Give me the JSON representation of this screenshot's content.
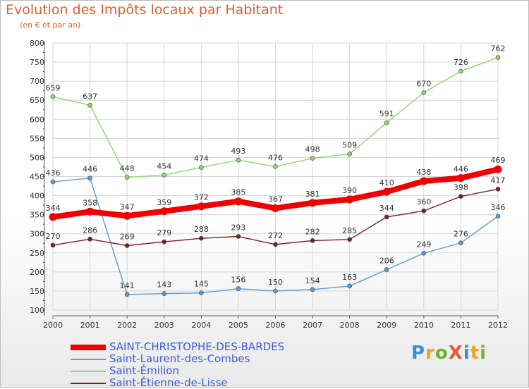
{
  "title": "Evolution des Impôts locaux par Habitant",
  "subtitle": "(en € et par an)",
  "brand": {
    "text": "Proxiti",
    "letters": [
      {
        "ch": "P",
        "color": "#3a8fd6"
      },
      {
        "ch": "r",
        "color": "#f2a21c"
      },
      {
        "ch": "o",
        "color": "#6cb52d"
      },
      {
        "ch": "X",
        "color": "#e35a3d"
      },
      {
        "ch": "i",
        "color": "#3a8fd6"
      },
      {
        "ch": "t",
        "color": "#f2a21c"
      },
      {
        "ch": "i",
        "color": "#6cb52d"
      }
    ]
  },
  "chart_data": {
    "type": "line",
    "title": "Evolution des Impôts locaux par Habitant",
    "subtitle": "(en € et par an)",
    "xlabel": "",
    "ylabel": "",
    "categories": [
      "2000",
      "2001",
      "2002",
      "2003",
      "2004",
      "2005",
      "2006",
      "2007",
      "2008",
      "2009",
      "2010",
      "2011",
      "2012"
    ],
    "ylim": [
      100,
      800
    ],
    "yticks": [
      100,
      150,
      200,
      250,
      300,
      350,
      400,
      450,
      500,
      550,
      600,
      650,
      700,
      750,
      800
    ],
    "grid": true,
    "legend_position": "bottom-left",
    "series": [
      {
        "name": "SAINT-CHRISTOPHE-DES-BARDES",
        "color": "#f00000",
        "emphasis": true,
        "values": [
          344,
          358,
          347,
          359,
          372,
          385,
          367,
          381,
          390,
          410,
          438,
          446,
          469
        ]
      },
      {
        "name": "Saint-Laurent-des-Combes",
        "color": "#5b9bd5",
        "values": [
          436,
          446,
          141,
          143,
          145,
          156,
          150,
          154,
          163,
          206,
          249,
          276,
          346
        ]
      },
      {
        "name": "Saint-Émilion",
        "color": "#8ed86a",
        "values": [
          659,
          637,
          448,
          454,
          474,
          493,
          476,
          498,
          509,
          591,
          670,
          726,
          762
        ]
      },
      {
        "name": "Saint-Étienne-de-Lisse",
        "color": "#7a2020",
        "values": [
          270,
          286,
          269,
          279,
          288,
          293,
          272,
          282,
          285,
          344,
          360,
          398,
          417
        ]
      }
    ]
  }
}
